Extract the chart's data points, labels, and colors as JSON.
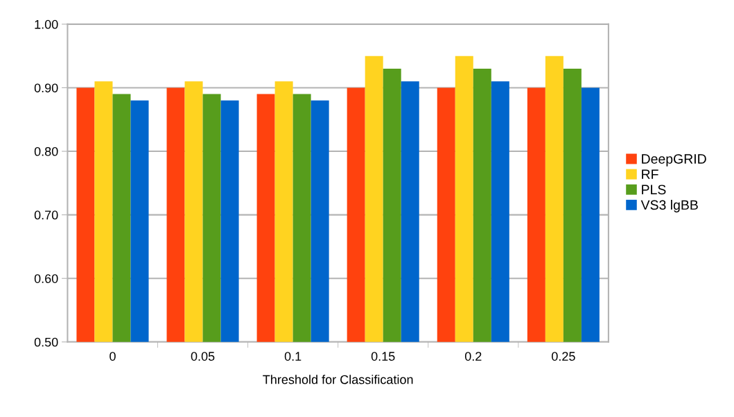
{
  "chart_data": {
    "type": "bar",
    "xlabel": "Threshold for Classification",
    "categories": [
      "0",
      "0.05",
      "0.1",
      "0.15",
      "0.2",
      "0.25"
    ],
    "series": [
      {
        "name": "DeepGRID",
        "color": "#ff420e",
        "values": [
          0.9,
          0.9,
          0.89,
          0.9,
          0.9,
          0.9
        ]
      },
      {
        "name": "RF",
        "color": "#ffd320",
        "values": [
          0.91,
          0.91,
          0.91,
          0.95,
          0.95,
          0.95
        ]
      },
      {
        "name": "PLS",
        "color": "#579d1c",
        "values": [
          0.89,
          0.89,
          0.89,
          0.93,
          0.93,
          0.93
        ]
      },
      {
        "name": "VS3 lgBB",
        "color": "#0066cc",
        "values": [
          0.88,
          0.88,
          0.88,
          0.91,
          0.91,
          0.9
        ]
      }
    ],
    "ylim": [
      0.5,
      1.0
    ],
    "yticks": [
      {
        "value": 0.5,
        "label": "0.50"
      },
      {
        "value": 0.6,
        "label": "0.60"
      },
      {
        "value": 0.7,
        "label": "0.70"
      },
      {
        "value": 0.8,
        "label": "0.80"
      },
      {
        "value": 0.9,
        "label": "0.90"
      },
      {
        "value": 1.0,
        "label": "1.00"
      }
    ],
    "grid": "y",
    "legend": "right"
  }
}
